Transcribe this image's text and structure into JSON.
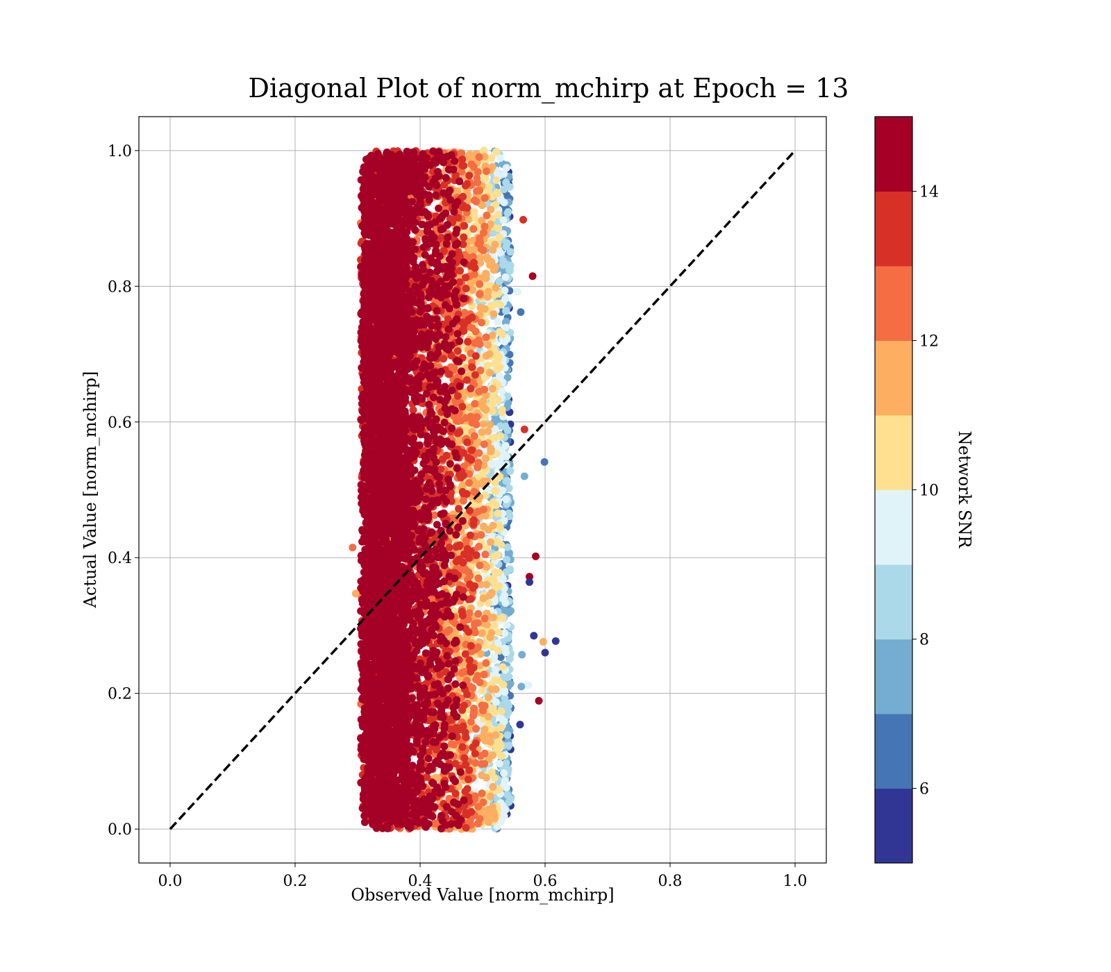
{
  "chart_data": {
    "type": "scatter",
    "title": "Diagonal Plot of norm_mchirp at Epoch = 13",
    "xlabel": "Observed Value [norm_mchirp]",
    "ylabel": "Actual Value [norm_mchirp]",
    "xlim": [
      -0.05,
      1.05
    ],
    "ylim": [
      -0.05,
      1.05
    ],
    "xticks": [
      "0.0",
      "0.2",
      "0.4",
      "0.6",
      "0.8",
      "1.0"
    ],
    "yticks": [
      "0.0",
      "0.2",
      "0.4",
      "0.6",
      "0.8",
      "1.0"
    ],
    "grid": true,
    "reference_line": {
      "x": [
        0.0,
        1.0
      ],
      "y": [
        0.0,
        1.0
      ],
      "style": "dashed",
      "color": "#000000"
    },
    "colorbar": {
      "label": "Network SNR",
      "range": [
        5,
        15
      ],
      "ticks": [
        "6",
        "8",
        "10",
        "12",
        "14"
      ],
      "bins": [
        5,
        6,
        7,
        8,
        9,
        10,
        11,
        12,
        13,
        14,
        15
      ],
      "colors": [
        "#313695",
        "#4575b4",
        "#74add1",
        "#abd9e9",
        "#e0f3f8",
        "#fee090",
        "#fdae61",
        "#f46d43",
        "#d73027",
        "#a50026"
      ]
    },
    "cloud": {
      "x_range": [
        0.3,
        0.55
      ],
      "y_range": [
        0.0,
        1.0
      ],
      "snr_gradient_by_x": [
        [
          0.3,
          15
        ],
        [
          0.4,
          14.5
        ],
        [
          0.46,
          12.5
        ],
        [
          0.5,
          10.5
        ],
        [
          0.53,
          8.5
        ],
        [
          0.55,
          6
        ]
      ]
    },
    "outliers": [
      {
        "x": 0.58,
        "y": 0.815,
        "snr": 15
      },
      {
        "x": 0.565,
        "y": 0.898,
        "snr": 13.5
      },
      {
        "x": 0.556,
        "y": 0.792,
        "snr": 9.5
      },
      {
        "x": 0.561,
        "y": 0.762,
        "snr": 6.5
      },
      {
        "x": 0.567,
        "y": 0.589,
        "snr": 13
      },
      {
        "x": 0.599,
        "y": 0.541,
        "snr": 6.5
      },
      {
        "x": 0.567,
        "y": 0.52,
        "snr": 7.5
      },
      {
        "x": 0.585,
        "y": 0.402,
        "snr": 15
      },
      {
        "x": 0.575,
        "y": 0.372,
        "snr": 15
      },
      {
        "x": 0.575,
        "y": 0.364,
        "snr": 5.5
      },
      {
        "x": 0.292,
        "y": 0.415,
        "snr": 12.5
      },
      {
        "x": 0.297,
        "y": 0.347,
        "snr": 11.5
      },
      {
        "x": 0.582,
        "y": 0.285,
        "snr": 5.5
      },
      {
        "x": 0.597,
        "y": 0.276,
        "snr": 11.5
      },
      {
        "x": 0.617,
        "y": 0.277,
        "snr": 5.5
      },
      {
        "x": 0.6,
        "y": 0.26,
        "snr": 5.5
      },
      {
        "x": 0.563,
        "y": 0.257,
        "snr": 7.5
      },
      {
        "x": 0.573,
        "y": 0.212,
        "snr": 9.5
      },
      {
        "x": 0.562,
        "y": 0.21,
        "snr": 7.5
      },
      {
        "x": 0.59,
        "y": 0.189,
        "snr": 15
      },
      {
        "x": 0.56,
        "y": 0.154,
        "snr": 5.5
      }
    ]
  }
}
